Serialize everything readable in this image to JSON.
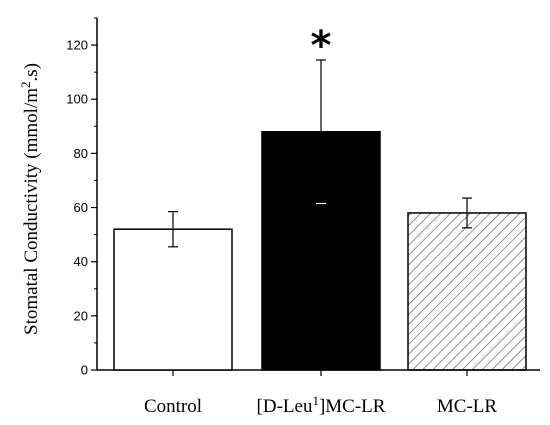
{
  "chart_data": {
    "type": "bar",
    "categories": [
      "Control",
      "[D-Leu1]MC-LR",
      "MC-LR"
    ],
    "category_parts": [
      {
        "pre": "Control",
        "sup": "",
        "post": ""
      },
      {
        "pre": "[D-Leu",
        "sup": "1",
        "post": "]MC-LR"
      },
      {
        "pre": "MC-LR",
        "sup": "",
        "post": ""
      }
    ],
    "values": [
      52,
      88,
      58
    ],
    "errors": [
      6.5,
      26.5,
      5.5
    ],
    "fills": [
      "white",
      "black",
      "hatched"
    ],
    "ylabel_parts": {
      "pre": "Stomatal Conductivity (mmol/m",
      "sup": "2",
      "post": ".s)"
    },
    "ylim": [
      0,
      130
    ],
    "yticks": [
      0,
      20,
      40,
      60,
      80,
      100,
      120
    ],
    "significance_marker": "*",
    "significance_index": 1,
    "colors": {
      "axis": "#000000",
      "solid_bar": "#000000",
      "hatch": "#555555"
    }
  }
}
